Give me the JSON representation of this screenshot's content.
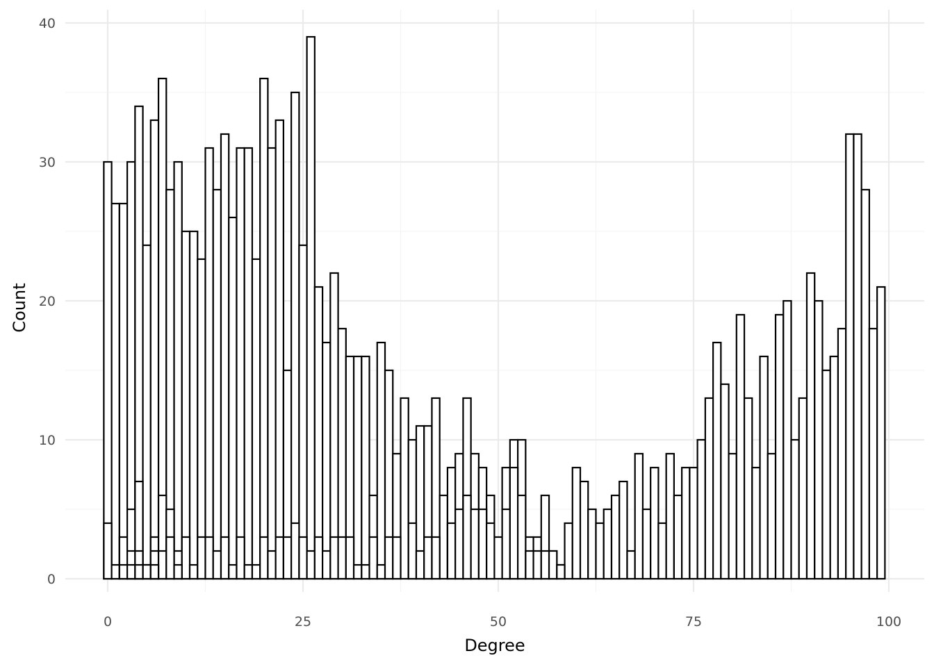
{
  "chart_data": {
    "type": "bar",
    "subtype": "histogram",
    "xlabel": "Degree",
    "ylabel": "Count",
    "xlim": [
      -5,
      105
    ],
    "ylim": [
      0,
      40
    ],
    "x_ticks": [
      0,
      25,
      50,
      75,
      100
    ],
    "x_tick_labels": [
      "0",
      "25",
      "50",
      "75",
      "100"
    ],
    "y_ticks": [
      0,
      10,
      20,
      30,
      40
    ],
    "y_tick_labels": [
      "0",
      "10",
      "20",
      "30",
      "40"
    ],
    "grid": true,
    "bar_fill": "#ffffff",
    "bar_outline": "#000000",
    "series": [
      {
        "x": [
          0,
          1,
          2,
          3,
          4,
          5,
          6,
          7,
          8,
          9,
          10,
          11,
          12,
          13,
          14,
          15,
          16,
          17,
          18,
          19,
          20,
          21,
          22,
          23,
          24,
          25,
          26,
          27,
          28,
          29,
          30,
          31,
          32,
          33,
          34,
          35,
          36,
          37,
          38,
          39,
          40,
          41,
          42,
          43,
          44,
          45,
          46,
          47,
          48,
          49,
          50,
          51,
          52,
          53,
          54,
          55,
          56,
          57,
          58,
          59,
          60,
          61,
          62,
          63,
          64,
          65,
          66,
          67,
          68,
          69,
          70,
          71,
          72,
          73,
          74,
          75,
          76,
          77,
          78,
          79,
          80,
          81,
          82,
          83,
          84,
          85,
          86,
          87,
          88,
          89,
          90,
          91,
          92,
          93,
          94,
          95,
          96,
          97,
          98,
          99
        ],
        "values": [
          30,
          27,
          27,
          30,
          34,
          24,
          33,
          36,
          28,
          30,
          25,
          25,
          23,
          31,
          28,
          32,
          26,
          31,
          31,
          23,
          36,
          31,
          33,
          15,
          35,
          24,
          39,
          21,
          17,
          22,
          18,
          16,
          16,
          16,
          6,
          17,
          15,
          9,
          13,
          10,
          11,
          11,
          13,
          6,
          8,
          9,
          13,
          9,
          8,
          6,
          3,
          8,
          10,
          10,
          3,
          3,
          6,
          2,
          1,
          4,
          8,
          7,
          5,
          4,
          5,
          6,
          7,
          2,
          9,
          5,
          8,
          4,
          9,
          6,
          8,
          8,
          10,
          13,
          17,
          14,
          9,
          19,
          13,
          8,
          16,
          9,
          19,
          20,
          10,
          13,
          22,
          20,
          15,
          16,
          18,
          32,
          32,
          28,
          18,
          21
        ]
      },
      {
        "x": [
          0,
          1,
          2,
          3,
          4,
          5,
          6,
          7,
          8,
          9,
          10,
          11,
          12,
          13,
          14,
          15,
          16,
          17,
          18,
          19,
          20,
          21,
          22,
          23,
          24,
          25,
          26,
          27,
          28,
          29,
          30,
          31,
          32,
          33,
          34,
          35,
          36,
          37,
          38,
          39,
          40,
          41,
          42,
          43,
          44,
          45,
          46,
          47,
          48,
          49,
          50,
          51,
          52,
          53,
          54,
          55,
          56,
          57,
          58,
          59,
          60,
          61,
          62,
          63,
          64,
          65,
          66,
          67,
          68,
          69,
          70,
          71,
          72,
          73,
          74,
          75,
          76,
          77,
          78,
          79,
          80,
          81,
          82,
          83,
          84,
          85,
          86,
          87,
          88,
          89,
          90,
          91,
          92,
          93,
          94,
          95,
          96,
          97,
          98,
          99
        ],
        "values": [
          4,
          1,
          3,
          5,
          7,
          1,
          3,
          6,
          5,
          2,
          3,
          1,
          3,
          3,
          2,
          3,
          1,
          3,
          1,
          1,
          3,
          2,
          3,
          3,
          4,
          3,
          2,
          3,
          2,
          3,
          3,
          3,
          1,
          1,
          3,
          1,
          3,
          3,
          0,
          4,
          2,
          3,
          3,
          0,
          4,
          5,
          6,
          5,
          5,
          4,
          0,
          5,
          8,
          6,
          2,
          2,
          2,
          2,
          1,
          0,
          0,
          0,
          0,
          0,
          0,
          0,
          0,
          0,
          0,
          0,
          0,
          0,
          0,
          0,
          0,
          0,
          0,
          0,
          0,
          0,
          0,
          0,
          0,
          0,
          0,
          0,
          0,
          0,
          0,
          0,
          0,
          0,
          0,
          0,
          0,
          0,
          0,
          0,
          0,
          0
        ]
      },
      {
        "x": [
          0,
          1,
          2,
          3,
          4,
          5,
          6,
          7,
          8,
          9,
          10,
          11,
          12,
          13,
          14,
          15,
          16,
          17,
          18,
          19,
          20,
          21,
          22,
          23,
          24,
          25,
          26,
          27,
          28,
          29,
          30,
          31,
          32,
          33,
          34,
          35,
          36,
          37,
          38,
          39,
          40,
          41,
          42,
          43,
          44,
          45,
          46,
          47,
          48,
          49,
          50,
          51,
          52,
          53,
          54,
          55,
          56,
          57,
          58,
          59,
          60,
          61,
          62,
          63,
          64,
          65,
          66,
          67,
          68,
          69,
          70,
          71,
          72,
          73,
          74,
          75,
          76,
          77,
          78,
          79,
          80,
          81,
          82,
          83,
          84,
          85,
          86,
          87,
          88,
          89,
          90,
          91,
          92,
          93,
          94,
          95,
          96,
          97,
          98,
          99
        ],
        "values": [
          0,
          0,
          1,
          2,
          2,
          1,
          2,
          2,
          3,
          1,
          0,
          0,
          0,
          0,
          0,
          0,
          0,
          0,
          0,
          0,
          0,
          0,
          0,
          0,
          0,
          0,
          0,
          0,
          0,
          0,
          0,
          0,
          0,
          0,
          0,
          0,
          0,
          0,
          0,
          0,
          0,
          0,
          0,
          0,
          0,
          0,
          0,
          0,
          0,
          0,
          0,
          0,
          0,
          0,
          0,
          0,
          0,
          0,
          0,
          0,
          0,
          0,
          0,
          0,
          0,
          0,
          0,
          0,
          0,
          0,
          0,
          0,
          0,
          0,
          0,
          0,
          0,
          0,
          0,
          0,
          0,
          0,
          0,
          0,
          0,
          0,
          0,
          0,
          0,
          0,
          0,
          0,
          0,
          0,
          0,
          0,
          0,
          0,
          0,
          0
        ]
      },
      {
        "x": [
          0,
          1,
          2,
          3,
          4,
          5,
          6,
          7,
          8,
          9,
          10,
          11,
          12,
          13,
          14,
          15,
          16,
          17,
          18,
          19,
          20,
          21,
          22,
          23,
          24,
          25,
          26,
          27,
          28,
          29,
          30,
          31,
          32,
          33,
          34,
          35,
          36,
          37,
          38,
          39,
          40,
          41,
          42,
          43,
          44,
          45,
          46,
          47,
          48,
          49,
          50,
          51,
          52,
          53,
          54,
          55,
          56,
          57,
          58,
          59,
          60,
          61,
          62,
          63,
          64,
          65,
          66,
          67,
          68,
          69,
          70,
          71,
          72,
          73,
          74,
          75,
          76,
          77,
          78,
          79,
          80,
          81,
          82,
          83,
          84,
          85,
          86,
          87,
          88,
          89,
          90,
          91,
          92,
          93,
          94,
          95,
          96,
          97,
          98,
          99
        ],
        "values": [
          0,
          0,
          0,
          1,
          1,
          0,
          1,
          0,
          0,
          0,
          0,
          0,
          0,
          0,
          0,
          0,
          0,
          0,
          0,
          0,
          0,
          0,
          0,
          0,
          0,
          0,
          0,
          0,
          0,
          0,
          0,
          0,
          0,
          0,
          0,
          0,
          0,
          0,
          0,
          0,
          0,
          0,
          0,
          0,
          0,
          0,
          0,
          0,
          0,
          0,
          0,
          0,
          0,
          0,
          0,
          0,
          0,
          0,
          0,
          0,
          0,
          0,
          0,
          0,
          0,
          0,
          0,
          0,
          0,
          0,
          0,
          0,
          0,
          0,
          0,
          0,
          0,
          0,
          0,
          0,
          0,
          0,
          0,
          0,
          0,
          0,
          0,
          0,
          0,
          0,
          0,
          0,
          0,
          0,
          0,
          0,
          0,
          0,
          0,
          0
        ]
      }
    ]
  }
}
